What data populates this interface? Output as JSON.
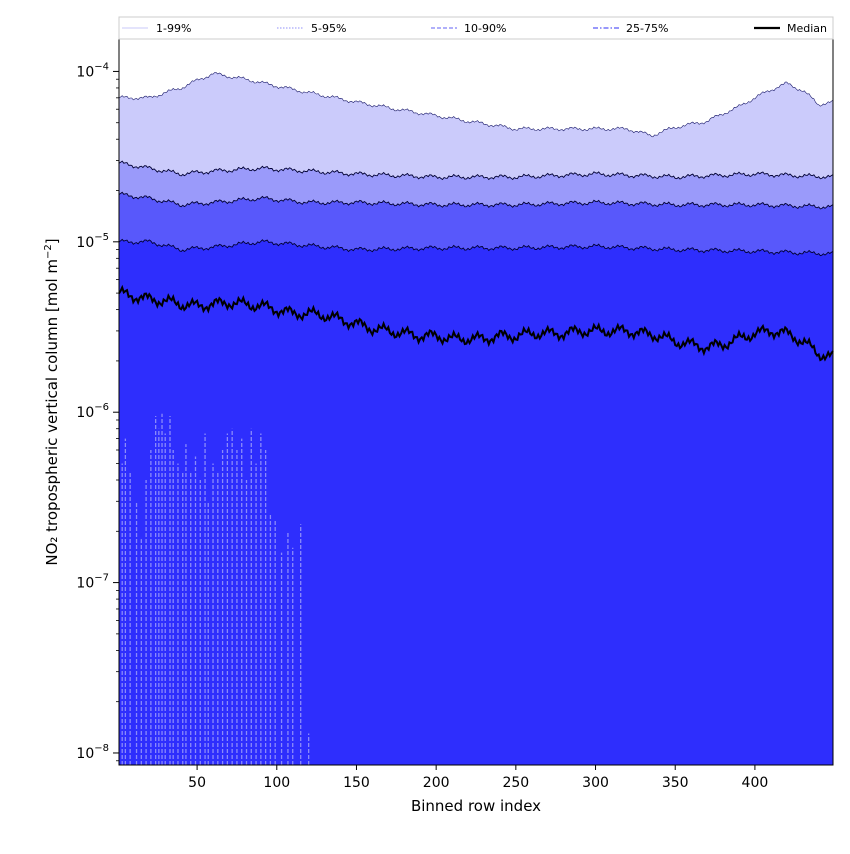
{
  "chart_data": {
    "type": "area",
    "title": "",
    "xlabel": "Binned row index",
    "ylabel_main": "NO₂ tropospheric vertical column [mol m",
    "ylabel_exp": "−2",
    "ylabel_close": "]",
    "yscale": "log",
    "xlim": [
      1,
      449
    ],
    "ylim": [
      8.5e-09,
      0.000155
    ],
    "x_ticks": [
      50,
      100,
      150,
      200,
      250,
      300,
      350,
      400
    ],
    "y_ticks": [
      {
        "value": 1e-08,
        "base": "10",
        "exp": "−8"
      },
      {
        "value": 1e-07,
        "base": "10",
        "exp": "−7"
      },
      {
        "value": 1e-06,
        "base": "10",
        "exp": "−6"
      },
      {
        "value": 1e-05,
        "base": "10",
        "exp": "−5"
      },
      {
        "value": 0.0001,
        "base": "10",
        "exp": "−4"
      }
    ],
    "legend_position": "top, spanning full width",
    "legend": [
      {
        "label": "1-99%",
        "color": "#d4d4fb",
        "dash": "solid"
      },
      {
        "label": "5-95%",
        "color": "#a6a6f9",
        "dash": "dotted"
      },
      {
        "label": "10-90%",
        "color": "#8080f8",
        "dash": "dashed"
      },
      {
        "label": "25-75%",
        "color": "#5a5af6",
        "dash": "dashdot"
      },
      {
        "label": "Median",
        "color": "#000000",
        "dash": "solid"
      }
    ],
    "bands": [
      {
        "name": "1-99%",
        "fill": "#cbcbfb",
        "upper": [
          [
            1,
            7e-05
          ],
          [
            20,
            7e-05
          ],
          [
            40,
            8e-05
          ],
          [
            60,
            9.7e-05
          ],
          [
            80,
            9e-05
          ],
          [
            100,
            8.2e-05
          ],
          [
            120,
            7.5e-05
          ],
          [
            150,
            6.6e-05
          ],
          [
            175,
            6e-05
          ],
          [
            200,
            5.5e-05
          ],
          [
            220,
            5.1e-05
          ],
          [
            250,
            4.6e-05
          ],
          [
            275,
            4.6e-05
          ],
          [
            300,
            4.6e-05
          ],
          [
            320,
            4.6e-05
          ],
          [
            335,
            4.2e-05
          ],
          [
            350,
            4.7e-05
          ],
          [
            370,
            5.1e-05
          ],
          [
            390,
            6.2e-05
          ],
          [
            410,
            7.8e-05
          ],
          [
            420,
            8.5e-05
          ],
          [
            430,
            7.7e-05
          ],
          [
            440,
            6.4e-05
          ],
          [
            449,
            6.6e-05
          ]
        ],
        "lower": [
          [
            1,
            2.9e-05
          ],
          [
            20,
            2.7e-05
          ],
          [
            40,
            2.5e-05
          ],
          [
            60,
            2.6e-05
          ],
          [
            90,
            2.7e-05
          ],
          [
            120,
            2.6e-05
          ],
          [
            150,
            2.5e-05
          ],
          [
            200,
            2.4e-05
          ],
          [
            250,
            2.4e-05
          ],
          [
            300,
            2.5e-05
          ],
          [
            350,
            2.4e-05
          ],
          [
            400,
            2.5e-05
          ],
          [
            449,
            2.4e-05
          ]
        ]
      },
      {
        "name": "5-95%",
        "fill": "#9a9afa",
        "upper": [
          [
            1,
            2.9e-05
          ],
          [
            20,
            2.7e-05
          ],
          [
            40,
            2.5e-05
          ],
          [
            60,
            2.6e-05
          ],
          [
            90,
            2.7e-05
          ],
          [
            120,
            2.6e-05
          ],
          [
            150,
            2.5e-05
          ],
          [
            200,
            2.4e-05
          ],
          [
            250,
            2.4e-05
          ],
          [
            300,
            2.5e-05
          ],
          [
            350,
            2.4e-05
          ],
          [
            400,
            2.5e-05
          ],
          [
            449,
            2.4e-05
          ]
        ],
        "lower": [
          [
            1,
            1.9e-05
          ],
          [
            20,
            1.8e-05
          ],
          [
            40,
            1.65e-05
          ],
          [
            60,
            1.7e-05
          ],
          [
            90,
            1.8e-05
          ],
          [
            120,
            1.7e-05
          ],
          [
            150,
            1.7e-05
          ],
          [
            200,
            1.65e-05
          ],
          [
            250,
            1.65e-05
          ],
          [
            300,
            1.7e-05
          ],
          [
            350,
            1.65e-05
          ],
          [
            400,
            1.65e-05
          ],
          [
            449,
            1.6e-05
          ]
        ]
      },
      {
        "name": "10-90%",
        "fill": "#5858fb",
        "upper": [
          [
            1,
            1.9e-05
          ],
          [
            20,
            1.8e-05
          ],
          [
            40,
            1.65e-05
          ],
          [
            60,
            1.7e-05
          ],
          [
            90,
            1.8e-05
          ],
          [
            120,
            1.7e-05
          ],
          [
            150,
            1.7e-05
          ],
          [
            200,
            1.65e-05
          ],
          [
            250,
            1.65e-05
          ],
          [
            300,
            1.7e-05
          ],
          [
            350,
            1.65e-05
          ],
          [
            400,
            1.65e-05
          ],
          [
            449,
            1.6e-05
          ]
        ],
        "lower": [
          [
            1,
            1e-05
          ],
          [
            20,
            1e-05
          ],
          [
            40,
            9e-06
          ],
          [
            60,
            9.3e-06
          ],
          [
            90,
            1e-05
          ],
          [
            120,
            9.5e-06
          ],
          [
            150,
            9e-06
          ],
          [
            200,
            9.2e-06
          ],
          [
            250,
            9.2e-06
          ],
          [
            300,
            9.4e-06
          ],
          [
            350,
            9e-06
          ],
          [
            400,
            8.8e-06
          ],
          [
            449,
            8.5e-06
          ]
        ]
      },
      {
        "name": "25-75%",
        "fill": "#2e2efd",
        "upper": [
          [
            1,
            1e-05
          ],
          [
            20,
            1e-05
          ],
          [
            40,
            9e-06
          ],
          [
            60,
            9.3e-06
          ],
          [
            90,
            1e-05
          ],
          [
            120,
            9.5e-06
          ],
          [
            150,
            9e-06
          ],
          [
            200,
            9.2e-06
          ],
          [
            250,
            9.2e-06
          ],
          [
            300,
            9.4e-06
          ],
          [
            350,
            9e-06
          ],
          [
            400,
            8.8e-06
          ],
          [
            449,
            8.5e-06
          ]
        ],
        "lower": [
          [
            1,
            8.5e-09
          ],
          [
            449,
            8.5e-09
          ]
        ]
      }
    ],
    "median": [
      [
        1,
        5e-06
      ],
      [
        10,
        4.8e-06
      ],
      [
        20,
        4.6e-06
      ],
      [
        30,
        4.5e-06
      ],
      [
        40,
        4.3e-06
      ],
      [
        50,
        4.2e-06
      ],
      [
        60,
        4.3e-06
      ],
      [
        70,
        4.4e-06
      ],
      [
        80,
        4.3e-06
      ],
      [
        90,
        4.2e-06
      ],
      [
        100,
        4e-06
      ],
      [
        110,
        3.8e-06
      ],
      [
        120,
        3.8e-06
      ],
      [
        130,
        3.7e-06
      ],
      [
        140,
        3.5e-06
      ],
      [
        150,
        3.3e-06
      ],
      [
        160,
        3.1e-06
      ],
      [
        170,
        3e-06
      ],
      [
        180,
        2.9e-06
      ],
      [
        190,
        2.8e-06
      ],
      [
        200,
        2.8e-06
      ],
      [
        210,
        2.7e-06
      ],
      [
        220,
        2.7e-06
      ],
      [
        230,
        2.7e-06
      ],
      [
        240,
        2.8e-06
      ],
      [
        250,
        2.8e-06
      ],
      [
        260,
        2.9e-06
      ],
      [
        270,
        2.9e-06
      ],
      [
        280,
        2.9e-06
      ],
      [
        290,
        3e-06
      ],
      [
        300,
        3e-06
      ],
      [
        310,
        3e-06
      ],
      [
        320,
        3e-06
      ],
      [
        330,
        2.9e-06
      ],
      [
        340,
        2.8e-06
      ],
      [
        350,
        2.6e-06
      ],
      [
        360,
        2.5e-06
      ],
      [
        370,
        2.4e-06
      ],
      [
        380,
        2.5e-06
      ],
      [
        390,
        2.7e-06
      ],
      [
        400,
        2.9e-06
      ],
      [
        410,
        3e-06
      ],
      [
        420,
        2.9e-06
      ],
      [
        430,
        2.6e-06
      ],
      [
        440,
        2.2e-06
      ],
      [
        449,
        2.1e-06
      ]
    ],
    "lower_spikes": [
      [
        3,
        5e-07
      ],
      [
        5,
        7e-07
      ],
      [
        8,
        4.5e-07
      ],
      [
        12,
        3e-07
      ],
      [
        15,
        1.8e-07
      ],
      [
        18,
        4e-07
      ],
      [
        21,
        6e-07
      ],
      [
        24,
        9.5e-07
      ],
      [
        26,
        8e-07
      ],
      [
        28,
        9.8e-07
      ],
      [
        30,
        7.5e-07
      ],
      [
        33,
        9.5e-07
      ],
      [
        35,
        6e-07
      ],
      [
        38,
        5e-07
      ],
      [
        41,
        4.5e-07
      ],
      [
        43,
        6.5e-07
      ],
      [
        46,
        4.5e-07
      ],
      [
        49,
        5.5e-07
      ],
      [
        52,
        4e-07
      ],
      [
        55,
        7.5e-07
      ],
      [
        57,
        3e-07
      ],
      [
        60,
        5e-07
      ],
      [
        63,
        4.5e-07
      ],
      [
        66,
        6e-07
      ],
      [
        69,
        7.5e-07
      ],
      [
        72,
        8e-07
      ],
      [
        75,
        6e-07
      ],
      [
        78,
        7e-07
      ],
      [
        81,
        4e-07
      ],
      [
        84,
        8e-07
      ],
      [
        87,
        5e-07
      ],
      [
        90,
        7.5e-07
      ],
      [
        93,
        6e-07
      ],
      [
        96,
        2.5e-07
      ],
      [
        99,
        2.3e-07
      ],
      [
        103,
        1.5e-07
      ],
      [
        107,
        2e-07
      ],
      [
        110,
        1.6e-07
      ],
      [
        115,
        2.2e-07
      ],
      [
        120,
        1.3e-08
      ]
    ]
  }
}
